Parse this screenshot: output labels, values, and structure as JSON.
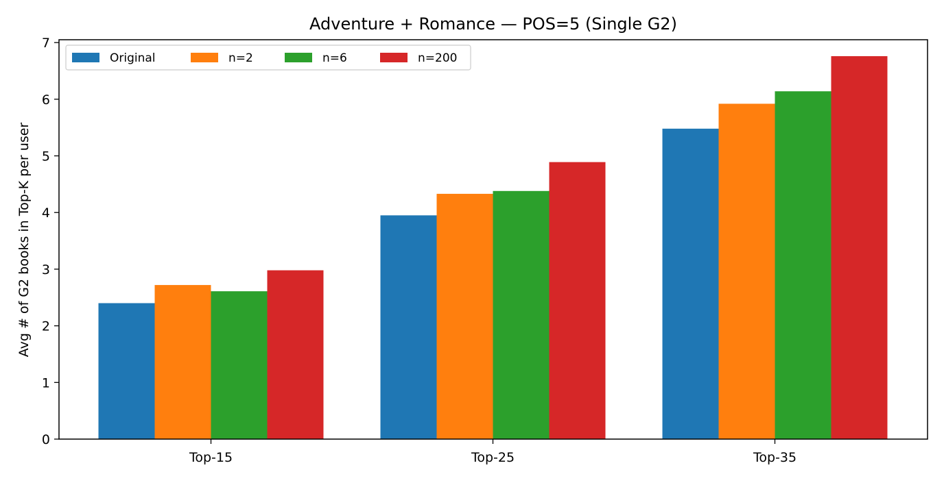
{
  "chart_data": {
    "type": "bar",
    "title": "Adventure + Romance — POS=5 (Single G2)",
    "xlabel": "",
    "ylabel": "Avg # of G2 books in Top-K per user",
    "categories": [
      "Top-15",
      "Top-25",
      "Top-35"
    ],
    "series": [
      {
        "name": "Original",
        "color": "#1f77b4",
        "values": [
          2.4,
          3.95,
          5.48
        ]
      },
      {
        "name": "n=2",
        "color": "#ff7f0e",
        "values": [
          2.72,
          4.33,
          5.92
        ]
      },
      {
        "name": "n=6",
        "color": "#2ca02c",
        "values": [
          2.61,
          4.38,
          6.14
        ]
      },
      {
        "name": "n=200",
        "color": "#d62728",
        "values": [
          2.98,
          4.89,
          6.76
        ]
      }
    ],
    "ylim": [
      0,
      7.05
    ],
    "yticks": [
      0,
      1,
      2,
      3,
      4,
      5,
      6,
      7
    ],
    "grid": false,
    "legend_position": "top-left"
  }
}
